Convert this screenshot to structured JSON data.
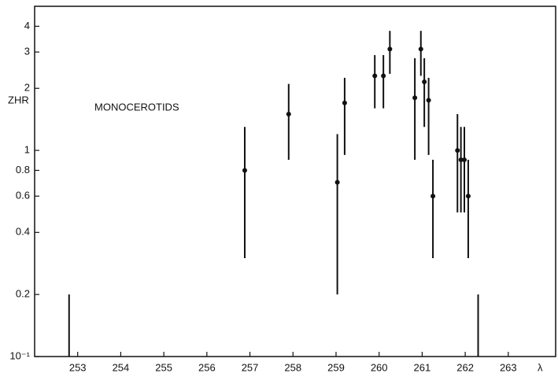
{
  "chart_data": {
    "type": "errorbar",
    "ylabel": "ZHR",
    "xlabel": "λ",
    "annotation": "MONOCEROTIDS",
    "log_y": true,
    "color": "#111111",
    "xlim": [
      252,
      264.1
    ],
    "ylim": [
      0.1,
      5
    ],
    "xticks": [
      253,
      254,
      255,
      256,
      257,
      258,
      259,
      260,
      261,
      262,
      263
    ],
    "yticks": [
      {
        "value": 0.1,
        "label": "10⁻¹"
      },
      0.2,
      0.4,
      0.6,
      0.8,
      1,
      2,
      3,
      4
    ],
    "series": [
      {
        "x": [
          256.88,
          257.9,
          259.03,
          259.2,
          259.9,
          260.1,
          260.25,
          260.83,
          260.97,
          261.05,
          261.15,
          261.25,
          261.82,
          261.9,
          261.98,
          262.07
        ],
        "values": [
          0.8,
          1.5,
          0.7,
          1.7,
          2.3,
          2.3,
          3.1,
          1.8,
          3.1,
          2.15,
          1.75,
          0.6,
          1.0,
          0.9,
          0.9,
          0.6
        ],
        "lower": [
          0.3,
          0.9,
          0.2,
          0.95,
          1.6,
          1.6,
          2.35,
          0.9,
          2.3,
          1.3,
          0.95,
          0.3,
          0.5,
          0.5,
          0.5,
          0.3
        ],
        "upper": [
          1.3,
          2.1,
          1.2,
          2.25,
          2.9,
          2.9,
          3.8,
          2.8,
          3.8,
          2.8,
          2.25,
          0.9,
          1.5,
          1.3,
          1.3,
          0.9
        ]
      }
    ],
    "limits": {
      "x": [
        252.8,
        262.3
      ],
      "values": [
        0.2,
        0.2
      ]
    }
  }
}
